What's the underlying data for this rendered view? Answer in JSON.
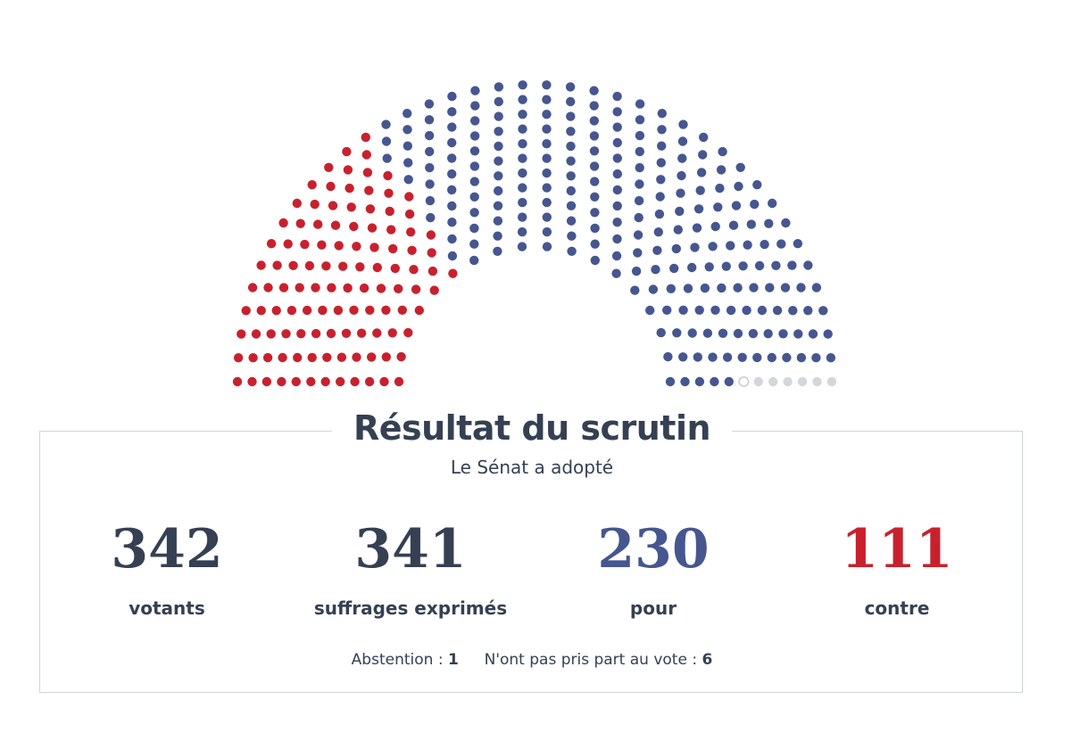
{
  "chart_data": {
    "type": "hemicycle",
    "title": "Résultat du scrutin",
    "subtitle": "Le Sénat a adopté",
    "seats_total": 348,
    "rows": 12,
    "segments": [
      {
        "key": "contre",
        "value": 111,
        "color": "#c8212e"
      },
      {
        "key": "pour",
        "value": 230,
        "color": "#46568f"
      },
      {
        "key": "abstention",
        "value": 1,
        "color": "#ffffff",
        "stroke": "#c5c9d0"
      },
      {
        "key": "non_votants",
        "value": 6,
        "color": "#d3d6db"
      }
    ]
  },
  "result": {
    "title": "Résultat du scrutin",
    "outcome": "Le Sénat a adopté",
    "stats": {
      "votants": {
        "value": "342",
        "label": "votants"
      },
      "exprimes": {
        "value": "341",
        "label": "suffrages exprimés"
      },
      "pour": {
        "value": "230",
        "label": "pour"
      },
      "contre": {
        "value": "111",
        "label": "contre"
      }
    },
    "abstention": {
      "label": "Abstention :",
      "value": "1"
    },
    "non_votants": {
      "label": "N'ont pas pris part au vote :",
      "value": "6"
    }
  }
}
